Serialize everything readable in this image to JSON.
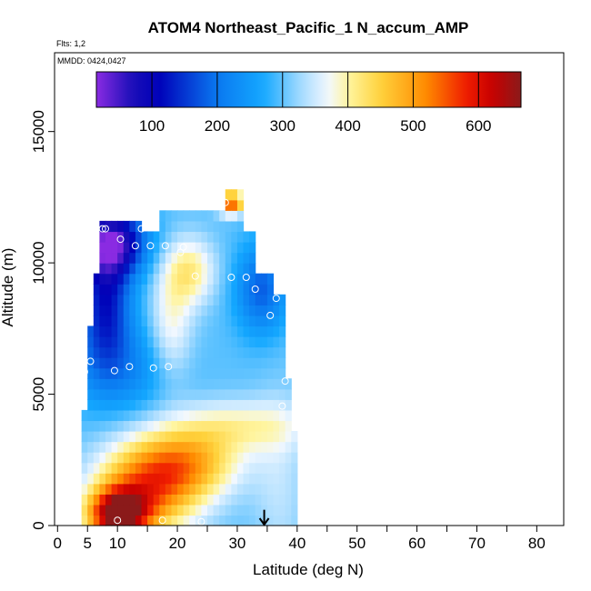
{
  "chart_data": {
    "type": "heatmap",
    "title": "ATOM4 Northeast_Pacific_1 N_accum_AMP",
    "notes": [
      "Flts: 1,2",
      "MMDD: 0424,0427"
    ],
    "xlabel": "Latitude (deg N)",
    "ylabel": "Altitude (m)",
    "xlim": [
      -0.5,
      84.5
    ],
    "ylim": [
      0,
      18000
    ],
    "xticks": [
      0,
      5,
      10,
      20,
      30,
      40,
      50,
      60,
      70,
      80
    ],
    "x_minor_ticks": [
      15,
      25,
      35,
      45,
      55,
      65,
      75
    ],
    "yticks": [
      0,
      5000,
      10000,
      15000
    ],
    "colorbar": {
      "min": 15,
      "max": 665,
      "ticks": [
        100,
        200,
        300,
        400,
        500,
        600
      ],
      "stops": [
        {
          "v": 15,
          "c": "#8A2BE2"
        },
        {
          "v": 70,
          "c": "#1A0FB8"
        },
        {
          "v": 110,
          "c": "#0000B8"
        },
        {
          "v": 200,
          "c": "#0A78F0"
        },
        {
          "v": 270,
          "c": "#14A8FF"
        },
        {
          "v": 330,
          "c": "#A8DCFF"
        },
        {
          "v": 370,
          "c": "#F2F8FF"
        },
        {
          "v": 400,
          "c": "#FFF5A0"
        },
        {
          "v": 450,
          "c": "#FFD23C"
        },
        {
          "v": 520,
          "c": "#FF8A00"
        },
        {
          "v": 580,
          "c": "#F01E00"
        },
        {
          "v": 620,
          "c": "#C80000"
        },
        {
          "v": 665,
          "c": "#8B1A1A"
        }
      ]
    },
    "field": {
      "x_step": 1.0,
      "y_step": 400,
      "columns": [
        {
          "lat": 4.5,
          "top": 4400
        },
        {
          "lat": 5.5,
          "top": 7500
        },
        {
          "lat": 6.5,
          "top": 9500
        },
        {
          "lat": 7.5,
          "top": 11500
        },
        {
          "lat": 12.5,
          "top": 11500
        },
        {
          "lat": 14.5,
          "top": 11100
        },
        {
          "lat": 16.5,
          "top": 11100
        },
        {
          "lat": 17.5,
          "top": 11900
        },
        {
          "lat": 20.5,
          "top": 11900
        },
        {
          "lat": 27.5,
          "top": 11900
        },
        {
          "lat": 28.5,
          "top": 12500
        },
        {
          "lat": 31.5,
          "top": 10900
        },
        {
          "lat": 33.5,
          "top": 9300
        },
        {
          "lat": 36.5,
          "top": 8500
        },
        {
          "lat": 38.5,
          "top": 5500
        },
        {
          "lat": 39.5,
          "top": 3500
        }
      ],
      "features": [
        {
          "type": "base",
          "value": 300
        },
        {
          "type": "blob",
          "lat": 10,
          "alt": 400,
          "sx": 3.5,
          "sy": 700,
          "amp": 330
        },
        {
          "type": "blob",
          "lat": 15,
          "alt": 1400,
          "sx": 6,
          "sy": 1200,
          "amp": 220
        },
        {
          "type": "blob",
          "lat": 22,
          "alt": 2400,
          "sx": 6,
          "sy": 900,
          "amp": 150
        },
        {
          "type": "blob",
          "lat": 30,
          "alt": 3800,
          "sx": 8,
          "sy": 700,
          "amp": 90
        },
        {
          "type": "blob",
          "lat": 22,
          "alt": 9700,
          "sx": 3,
          "sy": 900,
          "amp": 110
        },
        {
          "type": "blob",
          "lat": 19,
          "alt": 7600,
          "sx": 2.5,
          "sy": 1500,
          "amp": 80
        },
        {
          "type": "blob",
          "lat": 29,
          "alt": 12300,
          "sx": 1.5,
          "sy": 300,
          "amp": 260
        },
        {
          "type": "blob",
          "lat": 9,
          "alt": 10800,
          "sx": 4,
          "sy": 900,
          "amp": -250
        },
        {
          "type": "blob",
          "lat": 8,
          "alt": 8500,
          "sx": 3,
          "sy": 1600,
          "amp": -170
        },
        {
          "type": "blob",
          "lat": 34,
          "alt": 9000,
          "sx": 3,
          "sy": 1200,
          "amp": -120
        },
        {
          "type": "blob",
          "lat": 10,
          "alt": 6000,
          "sx": 6,
          "sy": 1200,
          "amp": -80
        },
        {
          "type": "blob",
          "lat": 37,
          "alt": 1500,
          "sx": 3,
          "sy": 2500,
          "amp": 40
        }
      ]
    },
    "sample_points": [
      {
        "x": 4.5,
        "y": 5850
      },
      {
        "x": 5.5,
        "y": 6250
      },
      {
        "x": 6,
        "y": 11300
      },
      {
        "x": 7.5,
        "y": 11300
      },
      {
        "x": 8,
        "y": 11300
      },
      {
        "x": 9.5,
        "y": 5900
      },
      {
        "x": 10.5,
        "y": 10900
      },
      {
        "x": 10,
        "y": 200
      },
      {
        "x": 12,
        "y": 6050
      },
      {
        "x": 13,
        "y": 10650
      },
      {
        "x": 14,
        "y": 11300
      },
      {
        "x": 15.5,
        "y": 10650
      },
      {
        "x": 16,
        "y": 6000
      },
      {
        "x": 17.5,
        "y": 200
      },
      {
        "x": 18,
        "y": 10650
      },
      {
        "x": 18.5,
        "y": 6050
      },
      {
        "x": 20.5,
        "y": 10400
      },
      {
        "x": 21,
        "y": 10600
      },
      {
        "x": 23,
        "y": 9500
      },
      {
        "x": 24,
        "y": 150
      },
      {
        "x": 28,
        "y": 12300
      },
      {
        "x": 29,
        "y": 9450
      },
      {
        "x": 31.5,
        "y": 9450
      },
      {
        "x": 33,
        "y": 9000
      },
      {
        "x": 35.5,
        "y": 8000
      },
      {
        "x": 36.5,
        "y": 8650
      },
      {
        "x": 37.5,
        "y": 4550
      },
      {
        "x": 38,
        "y": 5500
      }
    ],
    "arrow": {
      "x": 34.5,
      "y_from": 600,
      "y_to": 0
    }
  }
}
